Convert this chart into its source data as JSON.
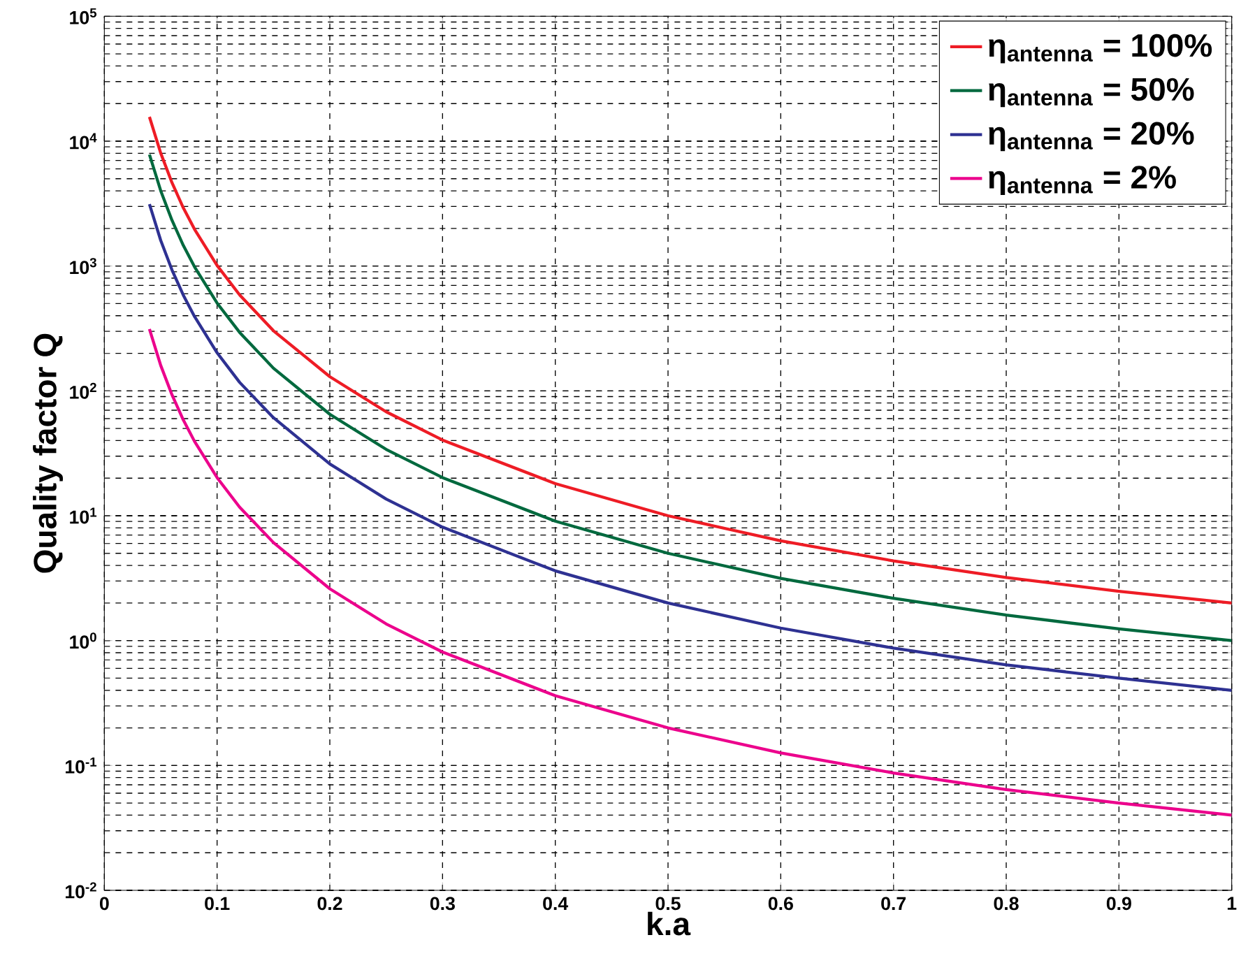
{
  "chart_data": {
    "type": "line",
    "xlabel": "k.a",
    "ylabel": "Quality factor Q",
    "log": "y",
    "grid": true,
    "legend": "top right",
    "line_style": "solid",
    "marker": "none",
    "x": [
      0.04,
      0.05,
      0.06,
      0.07,
      0.08,
      0.1,
      0.12,
      0.15,
      0.2,
      0.25,
      0.3,
      0.4,
      0.5,
      0.6,
      0.7,
      0.8,
      0.9,
      1.0
    ],
    "series": [
      {
        "name": "η$_{antenna}$ = 100%",
        "color": "#ee1c25",
        "values": [
          15650,
          8020,
          4650,
          2930,
          1970,
          1010,
          587,
          303,
          130,
          68,
          40.4,
          18.1,
          10,
          6.3,
          4.35,
          3.2,
          2.48,
          2
        ]
      },
      {
        "name": "η$_{antenna}$ = 50%",
        "color": "#00693e",
        "values": [
          7825,
          4010,
          2325,
          1465,
          985,
          505,
          294,
          152,
          65,
          34,
          20.2,
          9.05,
          5,
          3.15,
          2.18,
          1.6,
          1.24,
          1
        ]
      },
      {
        "name": "η$_{antenna}$ = 20%",
        "color": "#2e3192",
        "values": [
          3130,
          1604,
          930,
          586,
          394,
          202,
          117,
          61,
          26,
          13.6,
          8.1,
          3.62,
          2,
          1.26,
          0.87,
          0.64,
          0.5,
          0.4
        ]
      },
      {
        "name": "η$_{antenna}$ = 2%",
        "color": "#ec008c",
        "values": [
          313,
          160,
          93,
          58.6,
          39.4,
          20.2,
          11.7,
          6.1,
          2.6,
          1.36,
          0.81,
          0.362,
          0.2,
          0.126,
          0.087,
          0.064,
          0.05,
          0.04
        ]
      }
    ],
    "xlim": [
      0,
      1
    ],
    "xticks": [
      0,
      0.1,
      0.2,
      0.3,
      0.4,
      0.5,
      0.6,
      0.7,
      0.8,
      0.9,
      1
    ],
    "ylim": [
      0.01,
      100000
    ],
    "yticks": [
      {
        "value": 0.01,
        "label": "10$^{-2}$"
      },
      {
        "value": 0.1,
        "label": "10$^{-1}$"
      },
      {
        "value": 1,
        "label": "10$^{0}$"
      },
      {
        "value": 10,
        "label": "10$^{1}$"
      },
      {
        "value": 100,
        "label": "10$^{2}$"
      },
      {
        "value": 1000,
        "label": "10$^{3}$"
      },
      {
        "value": 10000,
        "label": "10$^{4}$"
      },
      {
        "value": 100000,
        "label": "10$^{5}$"
      }
    ]
  }
}
